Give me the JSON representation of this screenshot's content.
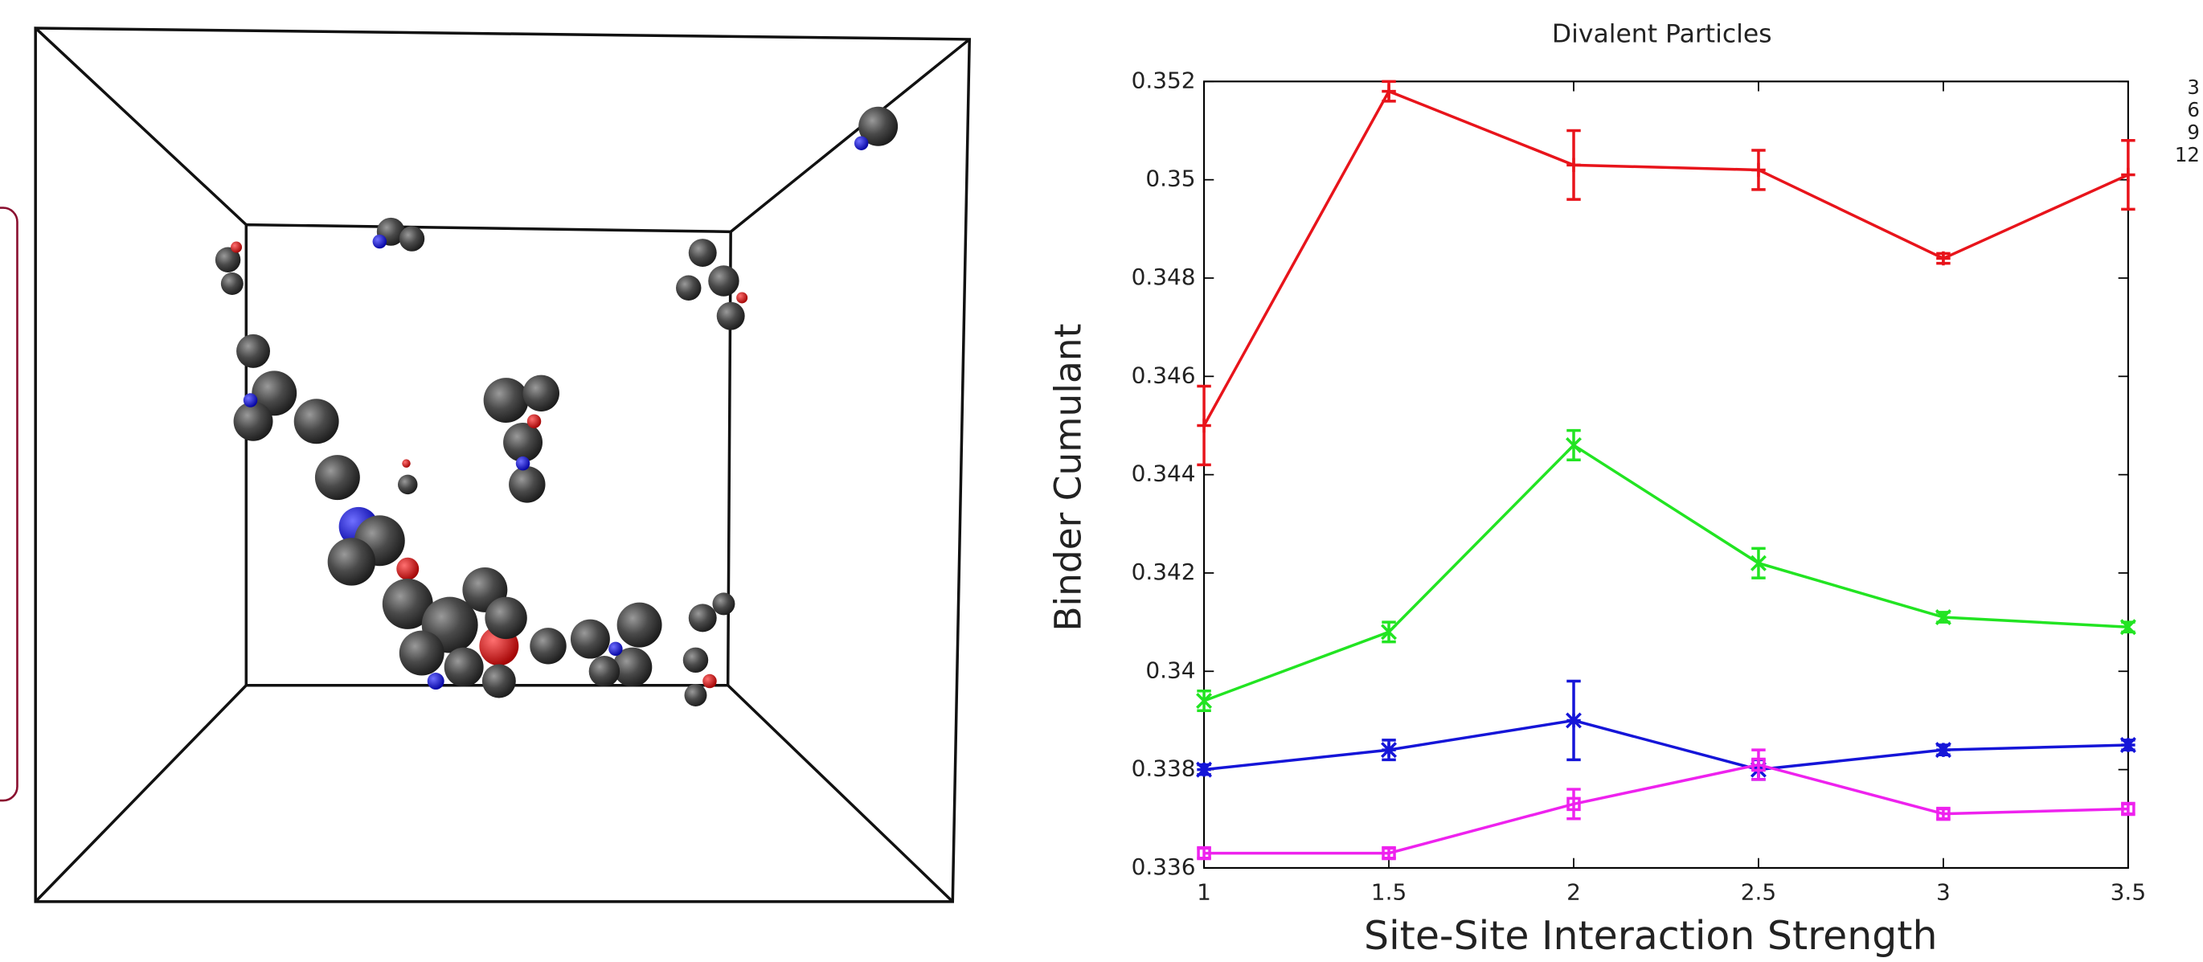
{
  "chart_data": {
    "type": "line",
    "title": "Divalent Particles",
    "x_label": "Site-Site Interaction Strength",
    "y_label": "Binder Cumulant",
    "x": [
      1,
      1.5,
      2,
      2.5,
      3,
      3.5
    ],
    "series": [
      {
        "name": "3",
        "color": "#e8141b",
        "marker": "plus",
        "values": [
          0.345,
          0.3518,
          0.3503,
          0.3502,
          0.3484,
          0.3501
        ],
        "errors": [
          0.0008,
          0.0002,
          0.0007,
          0.0004,
          0.0001,
          0.0007
        ]
      },
      {
        "name": "6",
        "color": "#22e422",
        "marker": "cross",
        "values": [
          0.3394,
          0.3408,
          0.3446,
          0.3422,
          0.3411,
          0.3409
        ],
        "errors": [
          0.0002,
          0.0002,
          0.0003,
          0.0003,
          0.0001,
          0.0001
        ]
      },
      {
        "name": "9",
        "color": "#1515d8",
        "marker": "star",
        "values": [
          0.338,
          0.3384,
          0.339,
          0.338,
          0.3384,
          0.3385
        ],
        "errors": [
          0.0001,
          0.0002,
          0.0008,
          0.0002,
          0.0001,
          0.0001
        ]
      },
      {
        "name": "12",
        "color": "#ee22ee",
        "marker": "square",
        "values": [
          0.3363,
          0.3363,
          0.3373,
          0.3381,
          0.3371,
          0.3372
        ],
        "errors": [
          0.0001,
          0.0001,
          0.0003,
          0.0003,
          0.0001,
          0.0001
        ]
      }
    ],
    "xlim": [
      1,
      3.5
    ],
    "xticks": [
      1,
      1.5,
      2,
      2.5,
      3,
      3.5
    ],
    "ylim": [
      0.336,
      0.352
    ],
    "yticks": [
      0.336,
      0.338,
      0.34,
      0.342,
      0.344,
      0.346,
      0.348,
      0.35,
      0.352
    ]
  }
}
